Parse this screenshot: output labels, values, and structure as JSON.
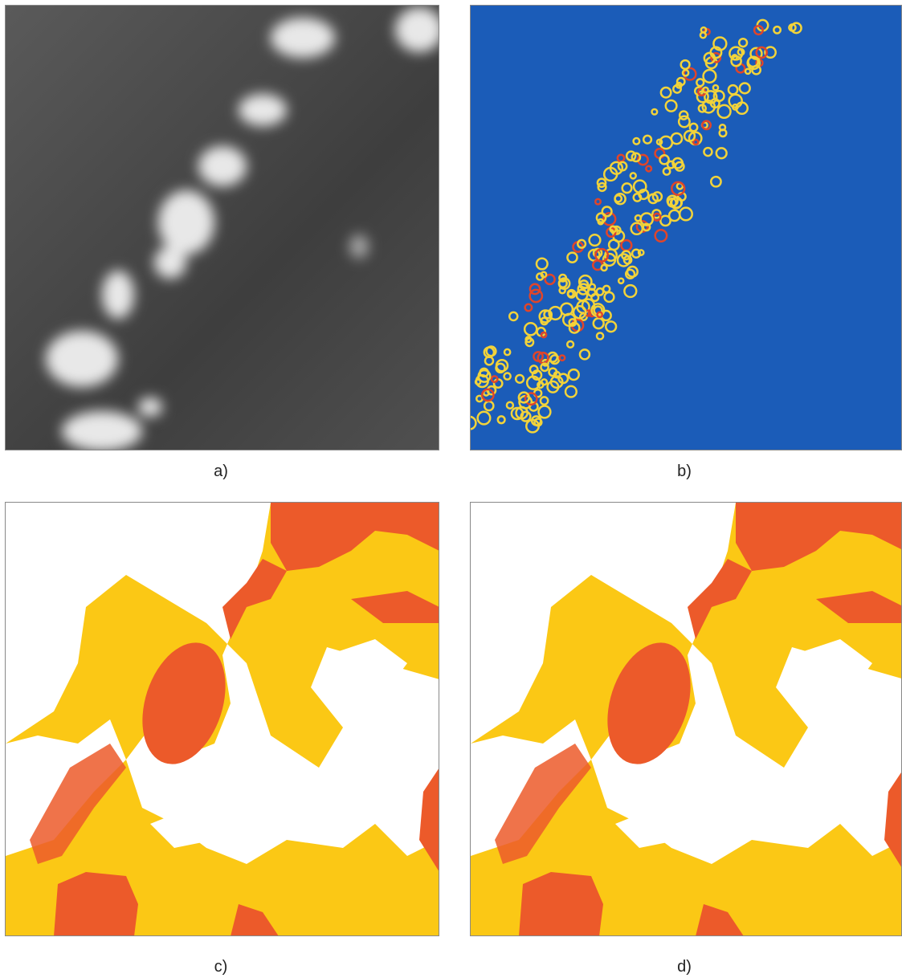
{
  "panels": [
    {
      "caption": "a)"
    },
    {
      "caption": "b)"
    },
    {
      "caption": "c)"
    },
    {
      "caption": "d)"
    }
  ]
}
